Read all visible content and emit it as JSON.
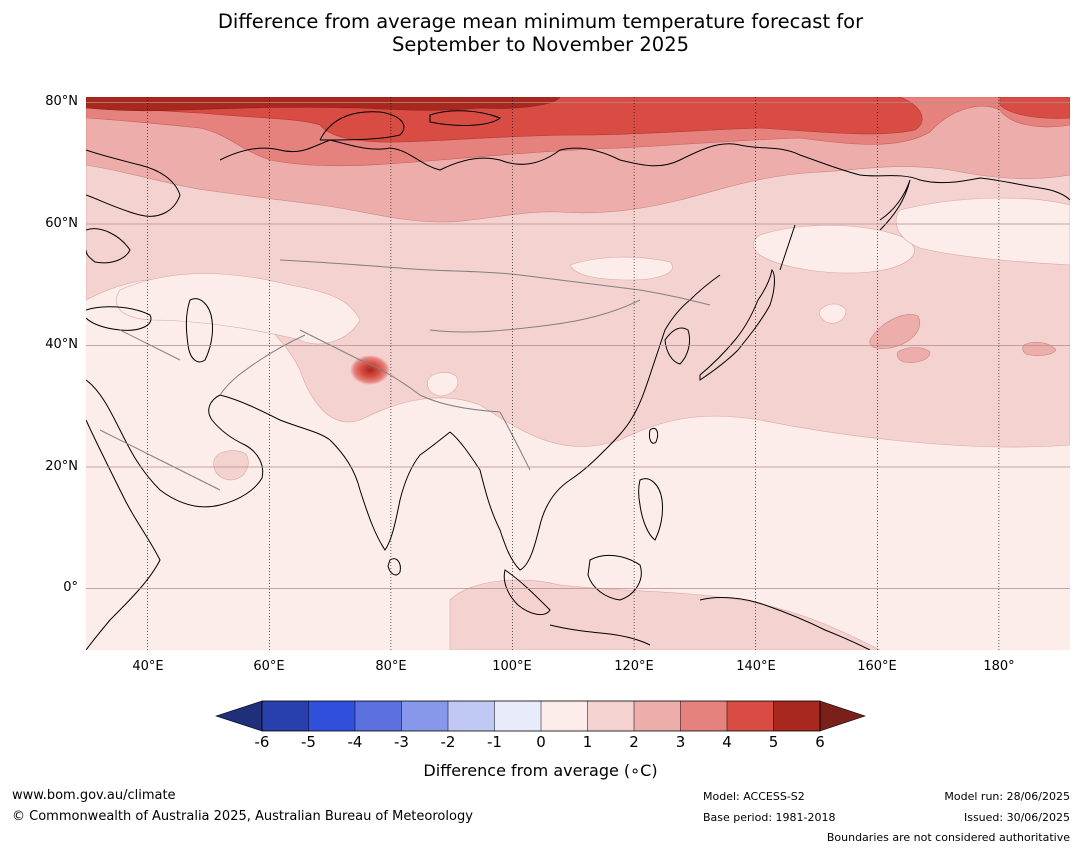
{
  "title_line1": "Difference from average mean minimum temperature forecast for",
  "title_line2": "September to November 2025",
  "lat_labels": [
    "80°N",
    "60°N",
    "40°N",
    "20°N",
    "0°"
  ],
  "lon_labels": [
    "40°E",
    "60°E",
    "80°E",
    "100°E",
    "120°E",
    "140°E",
    "160°E",
    "180°"
  ],
  "colorbar": {
    "title": "Difference from average (∘C)",
    "ticks": [
      "-6",
      "-5",
      "-4",
      "-3",
      "-2",
      "-1",
      "0",
      "1",
      "2",
      "3",
      "4",
      "5",
      "6"
    ],
    "colors": [
      "#1f2f7a",
      "#2a3fae",
      "#3050dc",
      "#5c70e0",
      "#8798ea",
      "#c0c8f4",
      "#e8ebfa",
      "#fcecea",
      "#f4d2d0",
      "#edaeab",
      "#e6827d",
      "#d84c43",
      "#a8281f",
      "#7a1f1a"
    ]
  },
  "footer": {
    "website": "www.bom.gov.au/climate",
    "copyright": "© Commonwealth of Australia 2025, Australian Bureau of Meteorology",
    "model": "Model: ACCESS-S2",
    "base_period": "Base period: 1981-2018",
    "model_run": "Model run: 28/06/2025",
    "issued": "Issued: 30/06/2025",
    "disclaimer": "Boundaries are not considered authoritative"
  }
}
